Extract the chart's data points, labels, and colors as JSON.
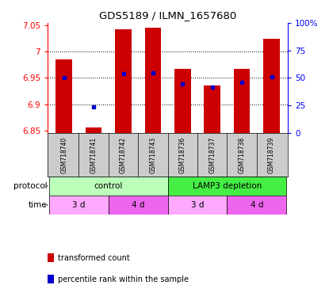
{
  "title": "GDS5189 / ILMN_1657680",
  "samples": [
    "GSM718740",
    "GSM718741",
    "GSM718742",
    "GSM718743",
    "GSM718736",
    "GSM718737",
    "GSM718738",
    "GSM718739"
  ],
  "bar_values": [
    6.985,
    6.856,
    7.042,
    7.045,
    6.968,
    6.936,
    6.968,
    7.025
  ],
  "bar_bottom": 6.845,
  "blue_dot_values": [
    6.95,
    6.895,
    6.958,
    6.96,
    6.938,
    6.933,
    6.942,
    6.952
  ],
  "ylim": [
    6.845,
    7.055
  ],
  "yticks": [
    6.85,
    6.9,
    6.95,
    7.0,
    7.05
  ],
  "ytick_labels": [
    "6.85",
    "6.9",
    "6.95",
    "7",
    "7.05"
  ],
  "right_yticks": [
    0,
    25,
    50,
    75,
    100
  ],
  "right_ytick_labels": [
    "0",
    "25",
    "50",
    "75",
    "100%"
  ],
  "gridlines": [
    6.9,
    6.95,
    7.0
  ],
  "bar_color": "#cc0000",
  "dot_color": "#0000cc",
  "protocol_groups": [
    {
      "label": "control",
      "start": 0,
      "end": 4,
      "color": "#bbffbb"
    },
    {
      "label": "LAMP3 depletion",
      "start": 4,
      "end": 8,
      "color": "#44ee44"
    }
  ],
  "time_groups": [
    {
      "label": "3 d",
      "start": 0,
      "end": 2,
      "color": "#ffaaff"
    },
    {
      "label": "4 d",
      "start": 2,
      "end": 4,
      "color": "#ee66ee"
    },
    {
      "label": "3 d",
      "start": 4,
      "end": 6,
      "color": "#ffaaff"
    },
    {
      "label": "4 d",
      "start": 6,
      "end": 8,
      "color": "#ee66ee"
    }
  ],
  "legend_items": [
    {
      "label": "transformed count",
      "color": "#cc0000"
    },
    {
      "label": "percentile rank within the sample",
      "color": "#0000cc"
    }
  ],
  "protocol_label": "protocol",
  "time_label": "time",
  "bar_width": 0.55,
  "sample_bg": "#cccccc",
  "fig_bg": "#ffffff"
}
